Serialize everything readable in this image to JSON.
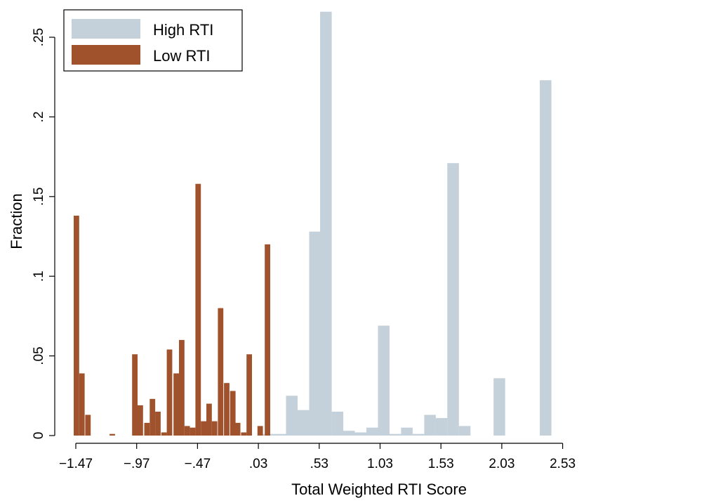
{
  "chart_data": {
    "type": "bar",
    "xlabel": "Total Weighted RTI Score",
    "ylabel": "Fraction",
    "xlim": [
      -1.6,
      2.62
    ],
    "ylim": [
      0,
      0.27
    ],
    "x_ticks": [
      -1.47,
      -0.97,
      -0.47,
      0.03,
      0.53,
      1.03,
      1.53,
      2.03,
      2.53
    ],
    "x_tick_labels": [
      "−1.47",
      "−.97",
      "−.47",
      ".03",
      ".53",
      "1.03",
      "1.53",
      "2.03",
      "2.53"
    ],
    "y_ticks": [
      0,
      0.05,
      0.1,
      0.15,
      0.2,
      0.25
    ],
    "y_tick_labels": [
      "0",
      ".05",
      ".1",
      ".15",
      ".2",
      ".25"
    ],
    "grid": false,
    "legend_position": "top-left",
    "series": [
      {
        "name": "High RTI",
        "color": "#c4d0da",
        "bar_width": 0.095,
        "x": [
          0.115,
          0.21,
          0.305,
          0.4,
          0.495,
          0.585,
          0.68,
          0.775,
          0.87,
          0.965,
          1.06,
          1.155,
          1.25,
          1.345,
          1.44,
          1.535,
          1.63,
          1.725,
          1.82,
          1.915,
          2.01,
          2.105,
          2.2,
          2.295,
          2.39
        ],
        "values": [
          0.001,
          0.001,
          0.025,
          0.016,
          0.128,
          0.266,
          0.015,
          0.003,
          0.002,
          0.005,
          0.069,
          0.001,
          0.005,
          0.001,
          0.013,
          0.011,
          0.171,
          0.006,
          0,
          0,
          0.036,
          0,
          0,
          0,
          0.223
        ]
      },
      {
        "name": "Low RTI",
        "color": "#a0522d",
        "bar_width": 0.045,
        "x": [
          -1.465,
          -1.42,
          -1.37,
          -1.17,
          -0.985,
          -0.94,
          -0.885,
          -0.84,
          -0.795,
          -0.745,
          -0.7,
          -0.645,
          -0.6,
          -0.555,
          -0.51,
          -0.465,
          -0.42,
          -0.375,
          -0.33,
          -0.28,
          -0.23,
          -0.18,
          -0.14,
          -0.09,
          -0.045,
          0.045,
          0.105
        ],
        "values": [
          0.138,
          0.039,
          0.013,
          0.001,
          0.051,
          0.019,
          0.008,
          0.023,
          0.015,
          0.002,
          0.054,
          0.039,
          0.06,
          0.006,
          0.005,
          0.158,
          0.009,
          0.02,
          0.009,
          0.08,
          0.033,
          0.028,
          0.008,
          0.002,
          0.051,
          0.006,
          0.12
        ]
      }
    ]
  }
}
